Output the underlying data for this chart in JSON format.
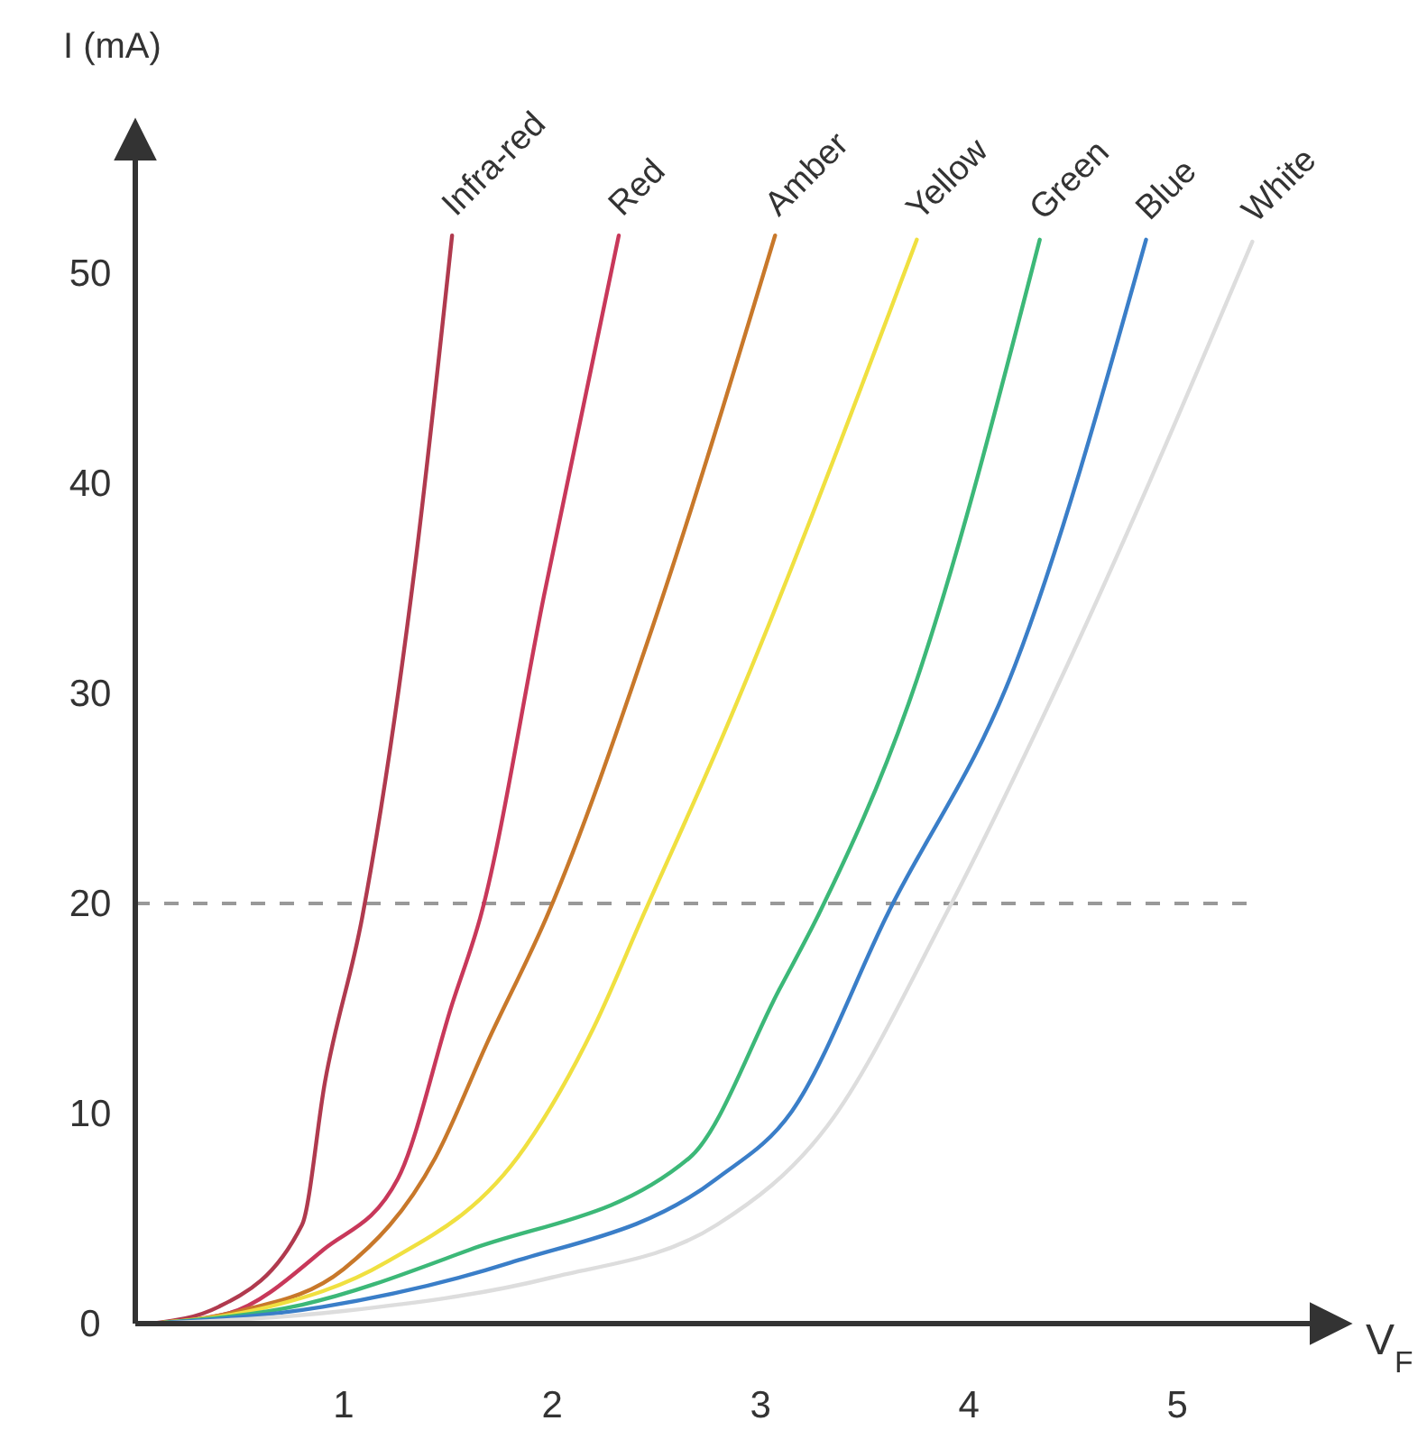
{
  "chart_data": {
    "type": "line",
    "xlabel": "V$_{F}$",
    "ylabel": "I (mA)",
    "xlim": [
      0,
      5.8
    ],
    "ylim": [
      0,
      57
    ],
    "xticks": [
      1,
      2,
      3,
      4,
      5
    ],
    "yticks": [
      0,
      10,
      20,
      30,
      40,
      50
    ],
    "grid": false,
    "marker": "none",
    "line_style": "solid",
    "ref_lines": [
      {
        "axis": "y",
        "value": 20,
        "color": "#999999",
        "line_style": "dashed"
      }
    ],
    "series": [
      {
        "name": "Infra-red",
        "color": "#b03a4e",
        "x": [
          0.08,
          0.4,
          0.8,
          0.91,
          1.09,
          1.34,
          1.52
        ],
        "values": [
          0,
          0.8,
          4.7,
          11.5,
          19.4,
          35.9,
          51.8
        ]
      },
      {
        "name": "Red",
        "color": "#c8385a",
        "x": [
          0.08,
          0.45,
          0.9,
          1.26,
          1.52,
          1.66,
          1.96,
          2.32
        ],
        "values": [
          0,
          0.5,
          3.5,
          6.9,
          15.2,
          19.5,
          34.6,
          51.8
        ]
      },
      {
        "name": "Amber",
        "color": "#c8782a",
        "x": [
          0.08,
          0.5,
          1.0,
          1.44,
          1.69,
          1.98,
          2.48,
          3.07
        ],
        "values": [
          0,
          0.6,
          2.6,
          7.9,
          13.4,
          19.5,
          33.1,
          51.8
        ]
      },
      {
        "name": "Yellow",
        "color": "#f0e040",
        "x": [
          0.08,
          0.6,
          1.2,
          1.87,
          2.2,
          2.44,
          2.79,
          3.75
        ],
        "values": [
          0,
          0.7,
          2.9,
          8.4,
          14.1,
          19.5,
          27.3,
          51.6
        ]
      },
      {
        "name": "Green",
        "color": "#3cb878",
        "x": [
          0.08,
          0.8,
          1.6,
          2.66,
          3.09,
          3.28,
          3.71,
          4.34
        ],
        "values": [
          0,
          0.9,
          3.5,
          7.9,
          15.9,
          19.5,
          29.5,
          51.6
        ]
      },
      {
        "name": "Blue",
        "color": "#3a7ec8",
        "x": [
          0.08,
          0.9,
          1.8,
          2.79,
          3.15,
          3.61,
          4.22,
          4.85
        ],
        "values": [
          0,
          0.8,
          2.9,
          6.9,
          10.1,
          19.5,
          31.3,
          51.6
        ]
      },
      {
        "name": "White",
        "color": "#dddddd",
        "x": [
          0.08,
          1.0,
          2.0,
          2.79,
          3.32,
          3.89,
          4.47,
          5.36
        ],
        "values": [
          0,
          0.6,
          2.2,
          4.7,
          9.4,
          19.5,
          31.3,
          51.5
        ]
      }
    ]
  }
}
